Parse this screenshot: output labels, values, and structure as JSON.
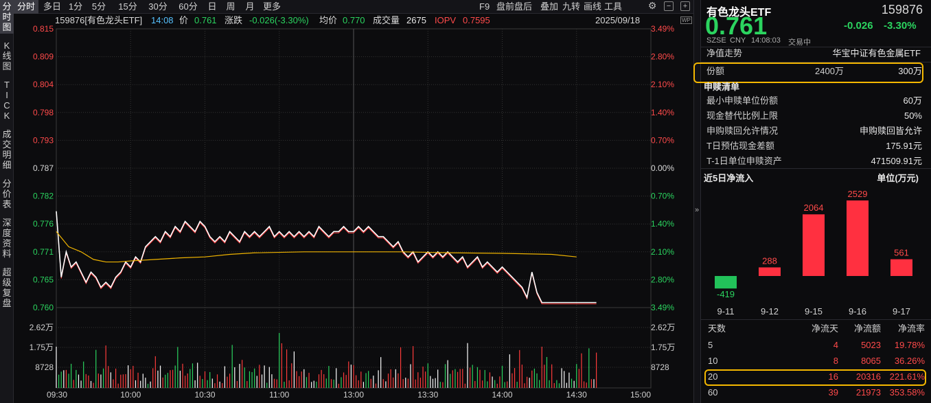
{
  "toolbar": {
    "tabs": [
      "分时",
      "多日",
      "1分",
      "5分",
      "15分",
      "30分",
      "60分",
      "日",
      "周",
      "月",
      "更多"
    ],
    "right_items": [
      "F9",
      "盘前盘后",
      "叠加",
      "九转",
      "画线",
      "工具"
    ],
    "icons": [
      "gear-icon",
      "minus-icon",
      "plus-icon"
    ]
  },
  "side_tabs": [
    "分时图",
    "K线图",
    "TICK",
    "成交明细",
    "分价表",
    "深度资料",
    "超级复盘"
  ],
  "chart_header": {
    "code_name": "159876[有色龙头ETF]",
    "time": "14:08",
    "price_label": "价",
    "price": "0.761",
    "change_label": "涨跌",
    "change": "-0.026(-3.30%)",
    "avg_label": "均价",
    "avg": "0.770",
    "vol_label": "成交量",
    "vol": "2675",
    "iopv_label": "IOPV",
    "iopv": "0.7595",
    "date": "2025/09/18"
  },
  "colors": {
    "up": "#ff3b3b",
    "down": "#2bd45f",
    "price_line": "#ffffff",
    "avg_line": "#f0b400",
    "highlight": "#f5b800"
  },
  "chart_data": [
    {
      "type": "line",
      "x_ticks": [
        "09:30",
        "10:00",
        "10:30",
        "11:00",
        "13:00",
        "13:30",
        "14:00",
        "14:30",
        "15:00"
      ],
      "y_left_ticks": [
        "0.815",
        "0.809",
        "0.804",
        "0.798",
        "0.793",
        "0.787",
        "0.782",
        "0.776",
        "0.771",
        "0.765",
        "0.760"
      ],
      "y_right_ticks": [
        "3.49%",
        "2.80%",
        "2.10%",
        "1.40%",
        "0.70%",
        "0.00%",
        "0.70%",
        "1.40%",
        "2.10%",
        "2.80%",
        "3.49%"
      ],
      "ylim": [
        0.76,
        0.815
      ],
      "prev_close": 0.787,
      "series": [
        {
          "name": "价",
          "x": [
            0,
            2,
            4,
            6,
            8,
            10,
            12,
            14,
            16,
            18,
            20,
            22,
            24,
            26,
            28,
            30,
            32,
            34,
            36,
            38,
            40,
            42,
            44,
            46,
            48,
            50,
            52,
            54,
            56,
            58,
            60,
            62,
            64,
            66,
            68,
            70,
            72,
            74,
            76,
            78,
            80,
            82,
            84,
            86,
            88,
            90,
            92,
            94,
            96,
            98,
            100,
            102,
            104,
            106,
            108,
            110,
            112,
            114,
            116,
            118,
            120,
            122,
            124,
            126,
            128,
            130,
            132,
            134,
            136,
            138,
            140,
            142,
            144,
            146,
            148,
            150,
            152,
            154,
            156,
            158,
            160,
            162,
            164,
            166,
            168,
            170,
            172,
            174,
            176,
            178,
            180,
            182,
            184,
            186,
            188,
            190,
            192,
            194,
            196,
            198,
            200,
            202,
            204,
            206,
            208,
            210,
            212,
            214,
            216,
            218
          ],
          "values": [
            0.779,
            0.766,
            0.771,
            0.768,
            0.769,
            0.767,
            0.765,
            0.767,
            0.766,
            0.764,
            0.765,
            0.764,
            0.766,
            0.767,
            0.769,
            0.768,
            0.77,
            0.769,
            0.772,
            0.773,
            0.774,
            0.773,
            0.775,
            0.774,
            0.776,
            0.775,
            0.777,
            0.776,
            0.775,
            0.777,
            0.776,
            0.774,
            0.773,
            0.774,
            0.773,
            0.775,
            0.774,
            0.773,
            0.775,
            0.774,
            0.775,
            0.774,
            0.775,
            0.776,
            0.774,
            0.775,
            0.774,
            0.775,
            0.774,
            0.775,
            0.774,
            0.775,
            0.774,
            0.776,
            0.775,
            0.774,
            0.775,
            0.775,
            0.776,
            0.775,
            0.775,
            0.776,
            0.775,
            0.776,
            0.775,
            0.774,
            0.774,
            0.773,
            0.772,
            0.773,
            0.771,
            0.77,
            0.771,
            0.769,
            0.77,
            0.771,
            0.77,
            0.771,
            0.77,
            0.771,
            0.77,
            0.769,
            0.77,
            0.768,
            0.769,
            0.77,
            0.768,
            0.769,
            0.768,
            0.767,
            0.768,
            0.767,
            0.766,
            0.765,
            0.764,
            0.762,
            0.767,
            0.763,
            0.761,
            0.761,
            0.761,
            0.761,
            0.761,
            0.761,
            0.761,
            0.761,
            0.761,
            0.761,
            0.761,
            0.761
          ]
        },
        {
          "name": "均价",
          "x": [
            0,
            5,
            10,
            15,
            20,
            25,
            30,
            40,
            50,
            60,
            70,
            80,
            100,
            120,
            140,
            160,
            180,
            200,
            210
          ],
          "values": [
            0.775,
            0.772,
            0.771,
            0.7695,
            0.769,
            0.769,
            0.7692,
            0.7695,
            0.7698,
            0.77,
            0.7705,
            0.7708,
            0.771,
            0.771,
            0.771,
            0.7708,
            0.7707,
            0.7705,
            0.77
          ]
        }
      ]
    },
    {
      "type": "bar",
      "y_ticks": [
        "2.62万",
        "1.75万",
        "8728"
      ],
      "note": "成交量 volume bars"
    },
    {
      "type": "bar",
      "title": "近5日净流入",
      "unit": "单位(万元)",
      "categories": [
        "9-11",
        "9-12",
        "9-15",
        "9-16",
        "9-17"
      ],
      "values": [
        -419,
        288,
        2064,
        2529,
        561
      ]
    }
  ],
  "right": {
    "name": "有色龙头ETF",
    "code": "159876",
    "price": "0.761",
    "change": "-0.026",
    "change_pct": "-3.30%",
    "exchange": "SZSE",
    "currency": "CNY",
    "time": "14:08:03",
    "status": "交易中",
    "nav_label": "净值走势",
    "index_name": "华宝中证有色金属ETF",
    "share_label": "份额",
    "share_value": "2400万",
    "share_change": "300万",
    "redeem_title": "申赎清单",
    "redeem_rows": [
      {
        "label": "最小申赎单位份额",
        "value": "60万"
      },
      {
        "label": "现金替代比例上限",
        "value": "50%"
      },
      {
        "label": "申购赎回允许情况",
        "value": "申购赎回皆允许"
      },
      {
        "label": "T日预估现金差额",
        "value": "175.91元"
      },
      {
        "label": "T-1日单位申赎资产",
        "value": "471509.91元"
      }
    ],
    "flow_title": "近5日净流入",
    "flow_unit": "单位(万元)",
    "table_headers": [
      "天数",
      "净流天",
      "净流额",
      "净流率"
    ],
    "table_rows": [
      {
        "days": "5",
        "net_days": "4",
        "net_amount": "5023",
        "net_rate": "19.78%"
      },
      {
        "days": "10",
        "net_days": "8",
        "net_amount": "8065",
        "net_rate": "36.26%"
      },
      {
        "days": "20",
        "net_days": "16",
        "net_amount": "20316",
        "net_rate": "221.61%"
      },
      {
        "days": "60",
        "net_days": "39",
        "net_amount": "21973",
        "net_rate": "353.58%"
      }
    ]
  }
}
